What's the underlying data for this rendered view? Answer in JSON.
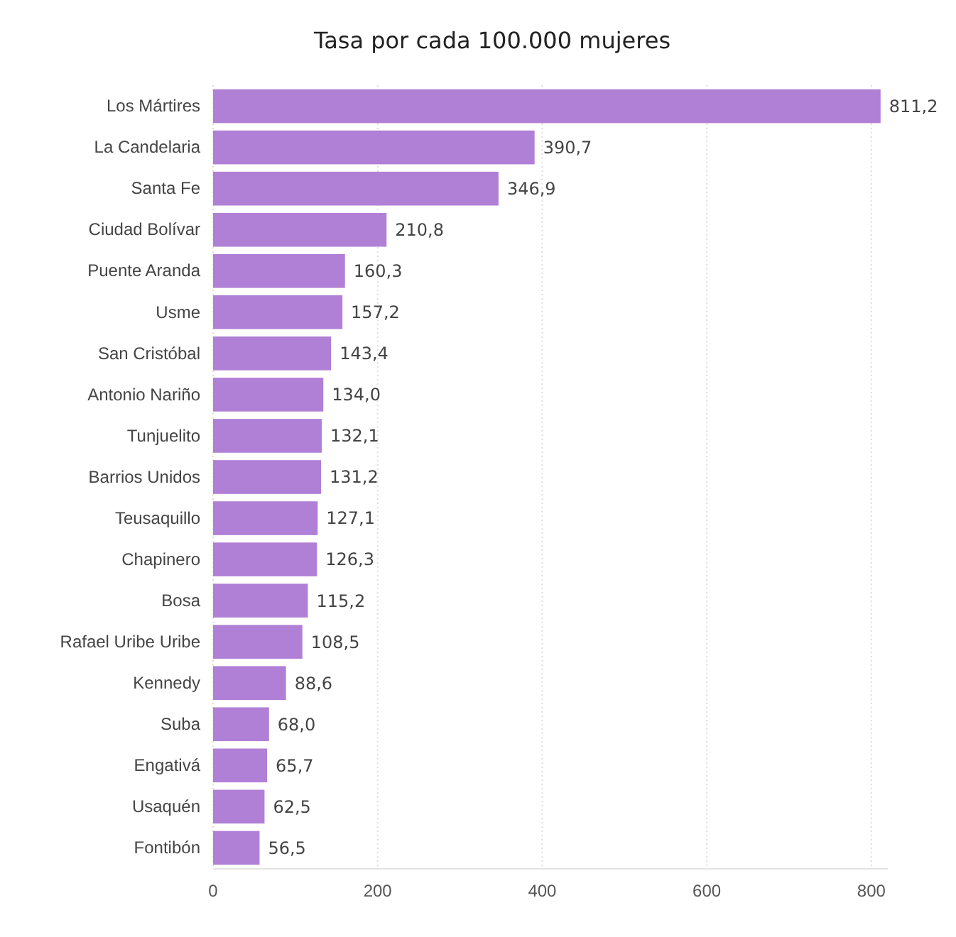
{
  "chart_data": {
    "type": "bar",
    "orientation": "horizontal",
    "title": "Tasa por cada 100.000 mujeres",
    "categories": [
      "Los Mártires",
      "La Candelaria",
      "Santa Fe",
      "Ciudad Bolívar",
      "Puente Aranda",
      "Usme",
      "San Cristóbal",
      "Antonio Nariño",
      "Tunjuelito",
      "Barrios Unidos",
      "Teusaquillo",
      "Chapinero",
      "Bosa",
      "Rafael Uribe Uribe",
      "Kennedy",
      "Suba",
      "Engativá",
      "Usaquén",
      "Fontibón"
    ],
    "values": [
      811.2,
      390.7,
      346.9,
      210.8,
      160.3,
      157.2,
      143.4,
      134.0,
      132.1,
      131.2,
      127.1,
      126.3,
      115.2,
      108.5,
      88.6,
      68.0,
      65.7,
      62.5,
      56.5
    ],
    "value_labels": [
      "811,2",
      "390,7",
      "346,9",
      "210,8",
      "160,3",
      "157,2",
      "143,4",
      "134,0",
      "132,1",
      "131,2",
      "127,1",
      "126,3",
      "115,2",
      "108,5",
      "88,6",
      "68,0",
      "65,7",
      "62,5",
      "56,5"
    ],
    "color": "#b07fd6",
    "xlim": [
      0,
      820
    ],
    "xticks": [
      0,
      200,
      400,
      600,
      800
    ],
    "grid": "x"
  }
}
